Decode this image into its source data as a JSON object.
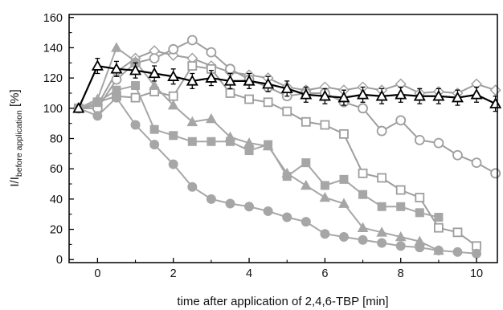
{
  "chart_data": {
    "type": "line",
    "title": "",
    "xlabel": "time after application of 2,4,6-TBP [min]",
    "ylabel": {
      "main": "I/I",
      "subscript": "before application",
      "unit": " [%]"
    },
    "xlim": [
      -0.75,
      10.55
    ],
    "ylim": [
      -2,
      162
    ],
    "xticks": [
      0,
      2,
      4,
      6,
      8,
      10
    ],
    "yticks": [
      0,
      20,
      40,
      60,
      80,
      100,
      120,
      140,
      160
    ],
    "grid": false,
    "series": [
      {
        "marker": "open-diamond",
        "color": "#9e9e9e",
        "x": [
          -0.5,
          0,
          0.5,
          1,
          1.5,
          2,
          2.5,
          3,
          3.5,
          4,
          4.5,
          5,
          5.5,
          6,
          6.5,
          7,
          7.5,
          8,
          8.5,
          9,
          9.5,
          10,
          10.5
        ],
        "y": [
          100,
          102,
          124,
          133,
          138,
          135,
          133,
          128,
          124,
          122,
          120,
          114,
          112,
          114,
          112,
          114,
          112,
          116,
          110,
          111,
          110,
          116,
          112
        ]
      },
      {
        "marker": "open-circle",
        "color": "#9e9e9e",
        "x": [
          -0.5,
          0,
          0.5,
          1,
          1.5,
          2,
          2.5,
          3,
          3.5,
          4,
          4.5,
          5,
          5.5,
          6,
          6.5,
          7,
          7.5,
          8,
          8.5,
          9,
          9.5,
          10,
          10.5
        ],
        "y": [
          100,
          100,
          119,
          130,
          133,
          139,
          145,
          137,
          126,
          119,
          114,
          108,
          110,
          110,
          104,
          100,
          85,
          92,
          79,
          77,
          69,
          64,
          57
        ]
      },
      {
        "marker": "open-square",
        "color": "#9e9e9e",
        "x": [
          -0.5,
          0,
          0.5,
          1,
          1.5,
          2,
          2.5,
          3,
          3.5,
          4,
          4.5,
          5,
          5.5,
          6,
          6.5,
          7,
          7.5,
          8,
          8.5,
          9,
          9.5,
          10
        ],
        "y": [
          100,
          104,
          108,
          107,
          111,
          108,
          128,
          126,
          110,
          106,
          104,
          98,
          91,
          89,
          83,
          57,
          54,
          46,
          41,
          21,
          18,
          9
        ]
      },
      {
        "marker": "filled-triangle",
        "color": "#a6a6a6",
        "x": [
          -0.5,
          0,
          0.5,
          1,
          1.5,
          2,
          2.5,
          3,
          3.5,
          4,
          4.5,
          5,
          5.5,
          6,
          6.5,
          7,
          7.5,
          8,
          8.5,
          9
        ],
        "y": [
          100,
          106,
          140,
          131,
          115,
          102,
          91,
          93,
          81,
          77,
          75,
          57,
          49,
          41,
          37,
          21,
          18,
          15,
          12,
          6
        ]
      },
      {
        "marker": "filled-square",
        "color": "#a6a6a6",
        "x": [
          -0.5,
          0,
          0.5,
          1,
          1.5,
          2,
          2.5,
          3,
          3.5,
          4,
          4.5,
          5,
          5.5,
          6,
          6.5,
          7,
          7.5,
          8,
          8.5,
          9
        ],
        "y": [
          100,
          104,
          112,
          115,
          86,
          82,
          78,
          78,
          78,
          72,
          76,
          55,
          64,
          49,
          53,
          43,
          35,
          35,
          31,
          28
        ]
      },
      {
        "marker": "filled-circle",
        "color": "#a6a6a6",
        "x": [
          -0.5,
          0,
          0.5,
          1,
          1.5,
          2,
          2.5,
          3,
          3.5,
          4,
          4.5,
          5,
          5.5,
          6,
          6.5,
          7,
          7.5,
          8,
          8.5,
          9,
          9.5,
          10
        ],
        "y": [
          100,
          95,
          107,
          89,
          76,
          63,
          48,
          40,
          37,
          35,
          32,
          28,
          25,
          17,
          15,
          13,
          11,
          9,
          8,
          6,
          5,
          4
        ]
      },
      {
        "marker": "open-triangle",
        "color": "#000000",
        "error_bars": true,
        "x": [
          -0.5,
          0,
          0.5,
          1,
          1.5,
          2,
          2.5,
          3,
          3.5,
          4,
          4.5,
          5,
          5.5,
          6,
          6.5,
          7,
          7.5,
          8,
          8.5,
          9,
          9.5,
          10,
          10.5
        ],
        "y": [
          100,
          128,
          126,
          125,
          123,
          121,
          118,
          120,
          118,
          118,
          116,
          113,
          109,
          108,
          107,
          109,
          108,
          109,
          108,
          108,
          107,
          109,
          103
        ],
        "error": [
          0,
          5,
          5,
          5,
          5,
          5,
          5,
          5,
          5,
          5,
          5,
          5,
          5,
          5,
          5,
          5,
          5,
          5,
          5,
          5,
          5,
          5,
          5
        ]
      }
    ]
  }
}
